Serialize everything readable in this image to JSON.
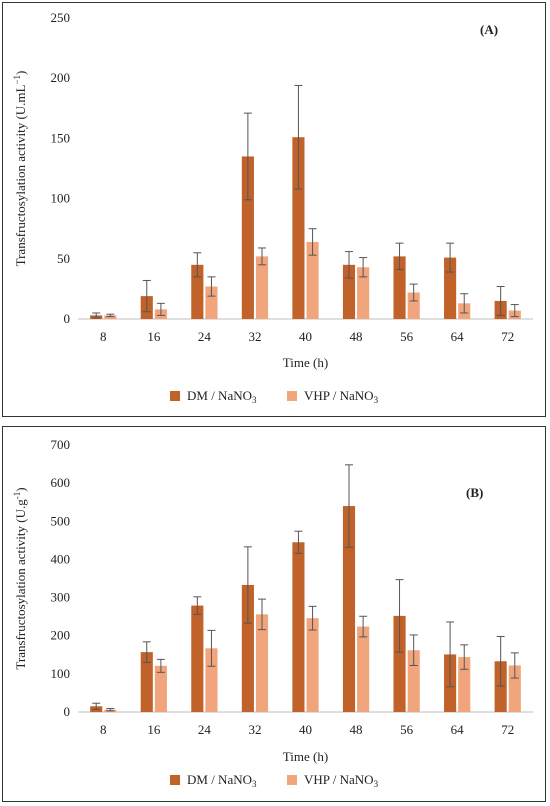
{
  "colors": {
    "dm": "#c0622a",
    "vhp": "#f0a57c",
    "axis": "#bfbfbf",
    "errbar": "#555555"
  },
  "chart_data": [
    {
      "type": "bar",
      "panel_label": "(A)",
      "xlabel": "Time (h)",
      "ylabel_main": "Transfructosylation activity (U.mL",
      "ylabel_sup": "−1",
      "ylabel_close": ")",
      "categories": [
        "8",
        "16",
        "24",
        "32",
        "40",
        "48",
        "56",
        "64",
        "72"
      ],
      "ylim": [
        0,
        250
      ],
      "yticks": [
        0,
        50,
        100,
        150,
        200,
        250
      ],
      "series": [
        {
          "name": "DM / NaNO",
          "name_sub": "3",
          "color_key": "dm",
          "values": [
            3,
            19,
            45,
            135,
            151,
            45,
            52,
            51,
            15
          ],
          "errors": [
            2,
            13,
            10,
            36,
            43,
            11,
            11,
            12,
            12
          ]
        },
        {
          "name": "VHP / NaNO",
          "name_sub": "3",
          "color_key": "vhp",
          "values": [
            3,
            8,
            27,
            52,
            64,
            43,
            22,
            13,
            7
          ],
          "errors": [
            1,
            5,
            8,
            7,
            11,
            8,
            7,
            8,
            5
          ]
        }
      ]
    },
    {
      "type": "bar",
      "panel_label": "(B)",
      "xlabel": "Time (h)",
      "ylabel_main": "Transfructosylation activity  (U.g",
      "ylabel_sup": "-1",
      "ylabel_close": ")",
      "categories": [
        "8",
        "16",
        "24",
        "32",
        "40",
        "48",
        "56",
        "64",
        "72"
      ],
      "ylim": [
        0,
        700
      ],
      "yticks": [
        0,
        100,
        200,
        300,
        400,
        500,
        600,
        700
      ],
      "series": [
        {
          "name": "DM / NaNO",
          "name_sub": "3",
          "color_key": "dm",
          "values": [
            15,
            157,
            279,
            333,
            445,
            540,
            252,
            151,
            133
          ],
          "errors": [
            8,
            27,
            23,
            100,
            29,
            108,
            95,
            85,
            65
          ]
        },
        {
          "name": "VHP / NaNO",
          "name_sub": "3",
          "color_key": "vhp",
          "values": [
            6,
            121,
            167,
            256,
            246,
            224,
            162,
            144,
            122
          ],
          "errors": [
            3,
            17,
            47,
            40,
            31,
            27,
            40,
            32,
            33
          ]
        }
      ]
    }
  ]
}
